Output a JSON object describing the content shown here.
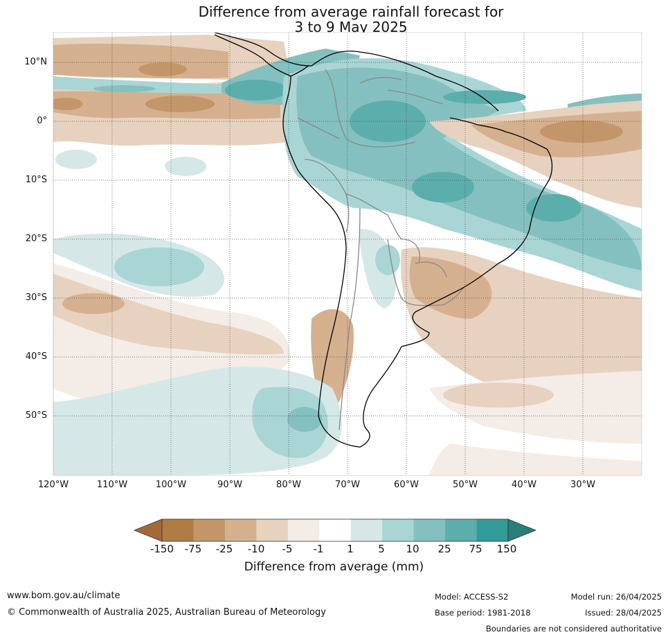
{
  "title": {
    "line1": "Difference from average rainfall forecast for",
    "line2": "3 to 9 May 2025"
  },
  "map": {
    "region": "South America",
    "lat_ticks": [
      "10°N",
      "0°",
      "10°S",
      "20°S",
      "30°S",
      "40°S",
      "50°S"
    ],
    "lon_ticks": [
      "120°W",
      "110°W",
      "100°W",
      "90°W",
      "80°W",
      "70°W",
      "60°W",
      "50°W",
      "40°W",
      "30°W"
    ],
    "gridlines": true
  },
  "colorbar": {
    "labels": [
      "-150",
      "-75",
      "-25",
      "-10",
      "-5",
      "-1",
      "1",
      "5",
      "10",
      "25",
      "75",
      "150"
    ],
    "colors": [
      "#a36a38",
      "#b07b45",
      "#c3966a",
      "#d5b08f",
      "#e6d2bf",
      "#f4ece6",
      "#ffffff",
      "#d5e8e7",
      "#a9d5d4",
      "#84c0bf",
      "#5caeac",
      "#329a98",
      "#2a7d7b"
    ],
    "title": "Difference from average (mm)",
    "extend": "both"
  },
  "footer": {
    "url": "www.bom.gov.au/climate",
    "copyright": "© Commonwealth of Australia 2025, Australian Bureau of Meteorology",
    "model": "Model: ACCESS-S2",
    "base_period": "Base period: 1981-2018",
    "model_run": "Model run: 26/04/2025",
    "issued": "Issued: 28/04/2025",
    "disclaimer": "Boundaries are not considered authoritative"
  }
}
